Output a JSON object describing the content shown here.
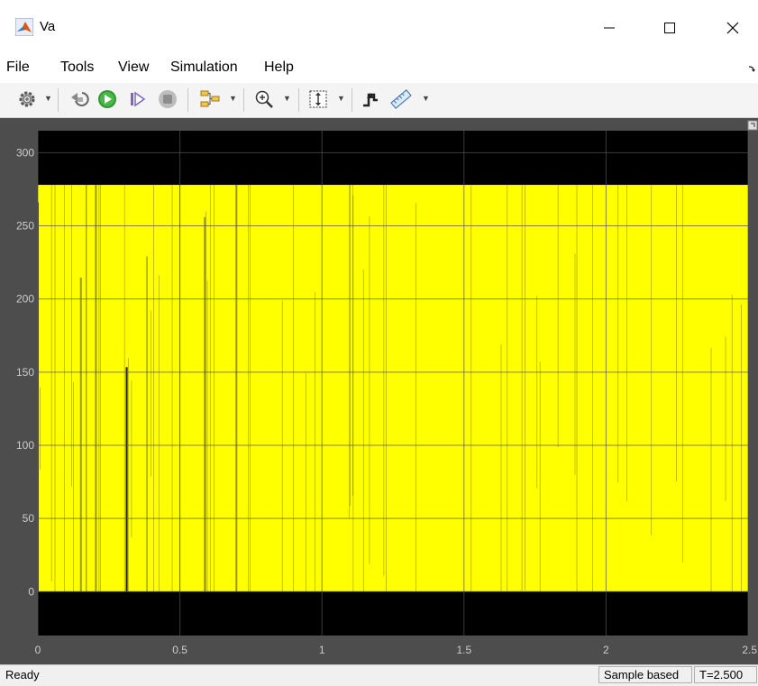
{
  "window": {
    "title": "Va",
    "icons": {
      "app": "matlab-logo-icon",
      "minimize": "minimize-icon",
      "maximize": "maximize-icon",
      "close": "close-icon"
    }
  },
  "menu": {
    "items": [
      "File",
      "Tools",
      "View",
      "Simulation",
      "Help"
    ],
    "overflow_icon": "menu-overflow-arrow-icon"
  },
  "toolbar": {
    "icons": [
      "settings-gear-icon",
      "step-back-icon",
      "run-icon",
      "step-forward-icon",
      "stop-icon",
      "signal-selector-icon",
      "zoom-in-icon",
      "scale-axes-icon",
      "triggers-icon",
      "measurements-icon"
    ]
  },
  "status": {
    "text": "Ready",
    "mode": "Sample based",
    "time": "T=2.500"
  },
  "colors": {
    "plot_bg": "#000000",
    "signal": "#ffff00",
    "grid": "#555555",
    "axes_bg": "#4d4d4d",
    "tick_text": "#cccccc"
  },
  "chart_data": {
    "type": "line",
    "series": [
      {
        "color": "#ffff00",
        "pattern": "dense PWM switching between 0 and ~278"
      }
    ],
    "x_ticks": [
      "0",
      "0.5",
      "1",
      "1.5",
      "2",
      "2.5"
    ],
    "y_ticks": [
      "0",
      "50",
      "100",
      "150",
      "200",
      "250",
      "300"
    ],
    "xlim": [
      0,
      2.5
    ],
    "ylim": [
      -30,
      315
    ],
    "signal_low": 0,
    "signal_high": 278,
    "grid": true
  }
}
